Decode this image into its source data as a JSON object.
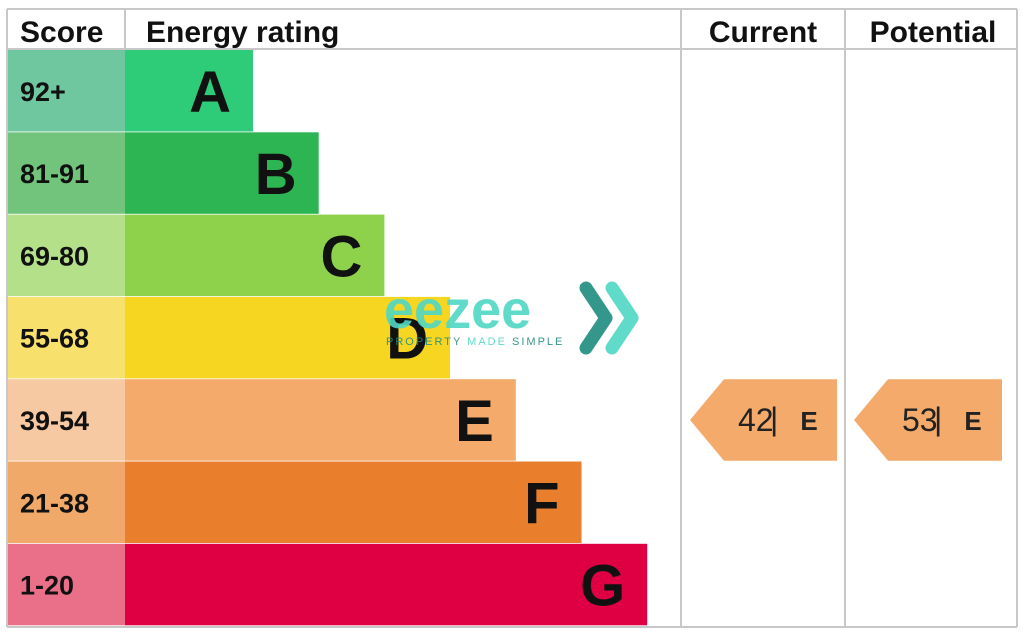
{
  "chart_data": {
    "type": "bar",
    "headers": {
      "score": "Score",
      "rating": "Energy rating",
      "current": "Current",
      "potential": "Potential"
    },
    "bands": [
      {
        "score": "92+",
        "letter": "A",
        "score_color": "#6fc7a0",
        "bar_color": "#2ecb78"
      },
      {
        "score": "81-91",
        "letter": "B",
        "score_color": "#72c47d",
        "bar_color": "#2db554"
      },
      {
        "score": "69-80",
        "letter": "C",
        "score_color": "#b4e08a",
        "bar_color": "#8ed14b"
      },
      {
        "score": "55-68",
        "letter": "D",
        "score_color": "#f8e06c",
        "bar_color": "#f7d621"
      },
      {
        "score": "39-54",
        "letter": "E",
        "score_color": "#f7c9a2",
        "bar_color": "#f3aa6b"
      },
      {
        "score": "21-38",
        "letter": "F",
        "score_color": "#f0a968",
        "bar_color": "#e97f2d"
      },
      {
        "score": "1-20",
        "letter": "G",
        "score_color": "#ea6f88",
        "bar_color": "#de0042"
      }
    ],
    "current": {
      "value": 42,
      "separator": "|",
      "letter": "E",
      "color": "#f3aa6b"
    },
    "potential": {
      "value": 53,
      "separator": "|",
      "letter": "E",
      "color": "#f3aa6b"
    }
  },
  "watermark": {
    "brand": "eezee",
    "tagline_a": "PROPERTY",
    "tagline_b": "MADE",
    "tagline_c": "SIMPLE",
    "color_main": "#4fd6c4",
    "color_dark": "#1f8c80"
  },
  "colors": {
    "grid": "#c8c8c8",
    "text": "#111111"
  }
}
